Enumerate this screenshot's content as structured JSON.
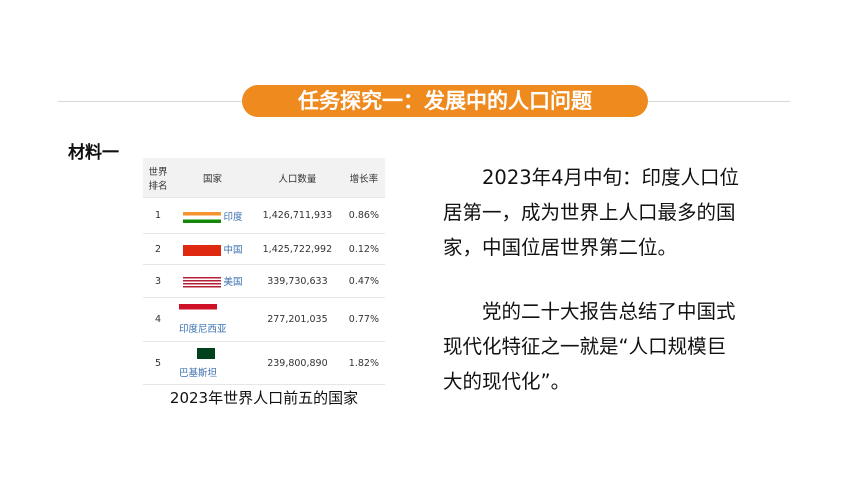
{
  "header": {
    "title": "任务探究一：发展中的人口问题"
  },
  "material_label": "材料一",
  "table": {
    "columns": [
      "世界排名",
      "国家",
      "人口数量",
      "增长率"
    ],
    "rows": [
      [
        "1",
        "印度",
        "1,426,711,933",
        "0.86%"
      ],
      [
        "2",
        "中国",
        "1,425,722,992",
        "0.12%"
      ],
      [
        "3",
        "美国",
        "339,730,633",
        "0.47%"
      ],
      [
        "4",
        "印度尼西亚",
        "277,201,035",
        "0.77%"
      ],
      [
        "5",
        "巴基斯坦",
        "239,800,890",
        "1.82%"
      ]
    ]
  },
  "caption": "2023年世界人口前五的国家",
  "paragraphs": [
    "2023年4月中旬：印度人口位居第一，成为世界上人口最多的国家，中国位居世界第二位。",
    "党的二十大报告总结了中国式现代化特征之一就是“人口规模巨大的现代化”。"
  ]
}
